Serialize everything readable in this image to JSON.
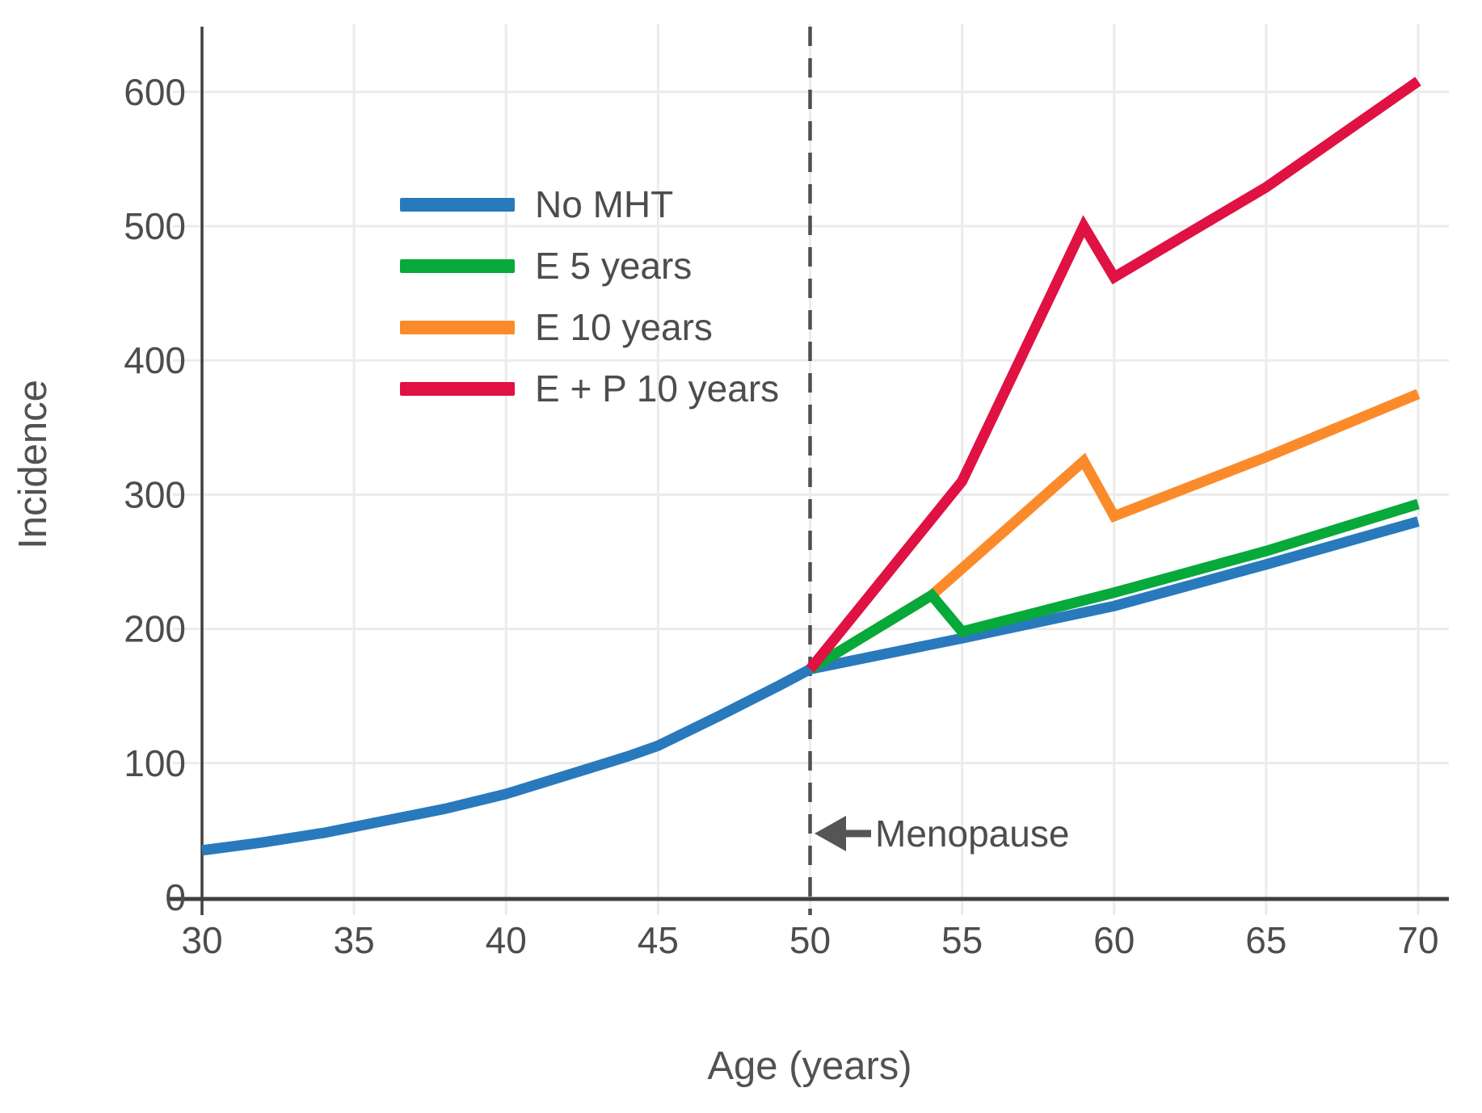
{
  "figure": {
    "background": "#ffffff",
    "text_color": "#4d4d4d",
    "axis_color": "#3f3f3f",
    "grid_color": "#ebebeb",
    "annotation_color": "#555555"
  },
  "chart_data": {
    "type": "line",
    "title": "",
    "xlabel": "Age (years)",
    "ylabel": "Incidence",
    "xlim": [
      30,
      70
    ],
    "ylim": [
      0,
      650
    ],
    "xticks": [
      30,
      35,
      40,
      45,
      50,
      55,
      60,
      65,
      70
    ],
    "yticks": [
      0,
      100,
      200,
      300,
      400,
      500,
      600
    ],
    "grid": true,
    "legend_position": "upper-left-inside",
    "series": [
      {
        "name": "No MHT",
        "color": "#2979bd",
        "points": [
          [
            30,
            35
          ],
          [
            32,
            41
          ],
          [
            34,
            48
          ],
          [
            36,
            57
          ],
          [
            38,
            66
          ],
          [
            40,
            77
          ],
          [
            42,
            91
          ],
          [
            44,
            105
          ],
          [
            45,
            113
          ],
          [
            47,
            135
          ],
          [
            49,
            158
          ],
          [
            50,
            170
          ],
          [
            55,
            193
          ],
          [
            60,
            217
          ],
          [
            65,
            248
          ],
          [
            70,
            280
          ]
        ]
      },
      {
        "name": "E 5 years",
        "color": "#07a93a",
        "points": [
          [
            50,
            170
          ],
          [
            54,
            225
          ],
          [
            55,
            198
          ],
          [
            60,
            227
          ],
          [
            65,
            258
          ],
          [
            70,
            293
          ]
        ]
      },
      {
        "name": "E 10 years",
        "color": "#fb8b2a",
        "points": [
          [
            50,
            170
          ],
          [
            54,
            225
          ],
          [
            59,
            325
          ],
          [
            60,
            284
          ],
          [
            65,
            328
          ],
          [
            70,
            375
          ]
        ]
      },
      {
        "name": "E + P 10 years",
        "color": "#e01143",
        "points": [
          [
            50,
            170
          ],
          [
            55,
            310
          ],
          [
            59,
            500
          ],
          [
            60,
            462
          ],
          [
            65,
            529
          ],
          [
            70,
            608
          ]
        ]
      }
    ],
    "annotations": [
      {
        "type": "vline",
        "x": 50,
        "style": "dashed",
        "color": "#4f4f4f"
      },
      {
        "type": "arrow-label",
        "text": "Menopause",
        "x": 50,
        "y": 48,
        "direction": "left",
        "color": "#555555"
      }
    ]
  }
}
